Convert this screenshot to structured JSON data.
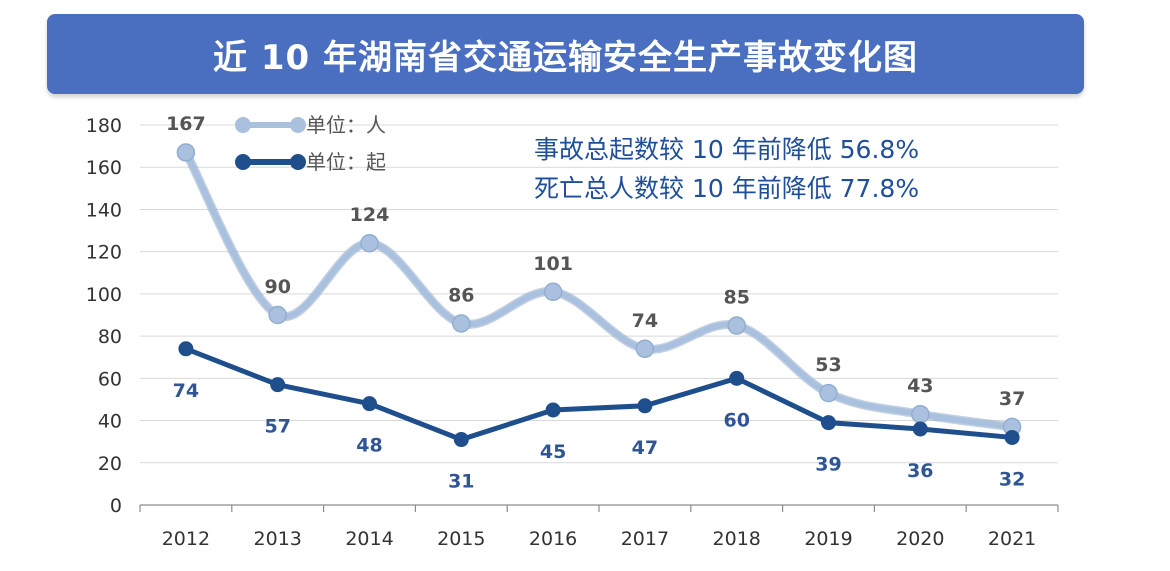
{
  "colors": {
    "banner": "#4a6fc1",
    "series_people": "#a9c1de",
    "series_events": "#1f4e8c",
    "grid": "#d9d9d9",
    "annotation": "#1f4e9a"
  },
  "chart_data": {
    "type": "line",
    "title": "近 10 年湖南省交通运输安全生产事故变化图",
    "xlabel": "",
    "ylabel": "",
    "ylim": [
      0,
      180
    ],
    "yticks": [
      0,
      20,
      40,
      60,
      80,
      100,
      120,
      140,
      160,
      180
    ],
    "grid": true,
    "legend_position": "top-left",
    "categories": [
      "2012",
      "2013",
      "2014",
      "2015",
      "2016",
      "2017",
      "2018",
      "2019",
      "2020",
      "2021"
    ],
    "series": [
      {
        "name": "单位：人",
        "values": [
          167,
          90,
          124,
          86,
          101,
          74,
          85,
          53,
          43,
          37
        ]
      },
      {
        "name": "单位：起",
        "values": [
          74,
          57,
          48,
          31,
          45,
          47,
          60,
          39,
          36,
          32
        ]
      }
    ],
    "annotations": [
      "事故总起数较 10 年前降低 56.8%",
      "死亡总人数较 10 年前降低 77.8%"
    ]
  }
}
